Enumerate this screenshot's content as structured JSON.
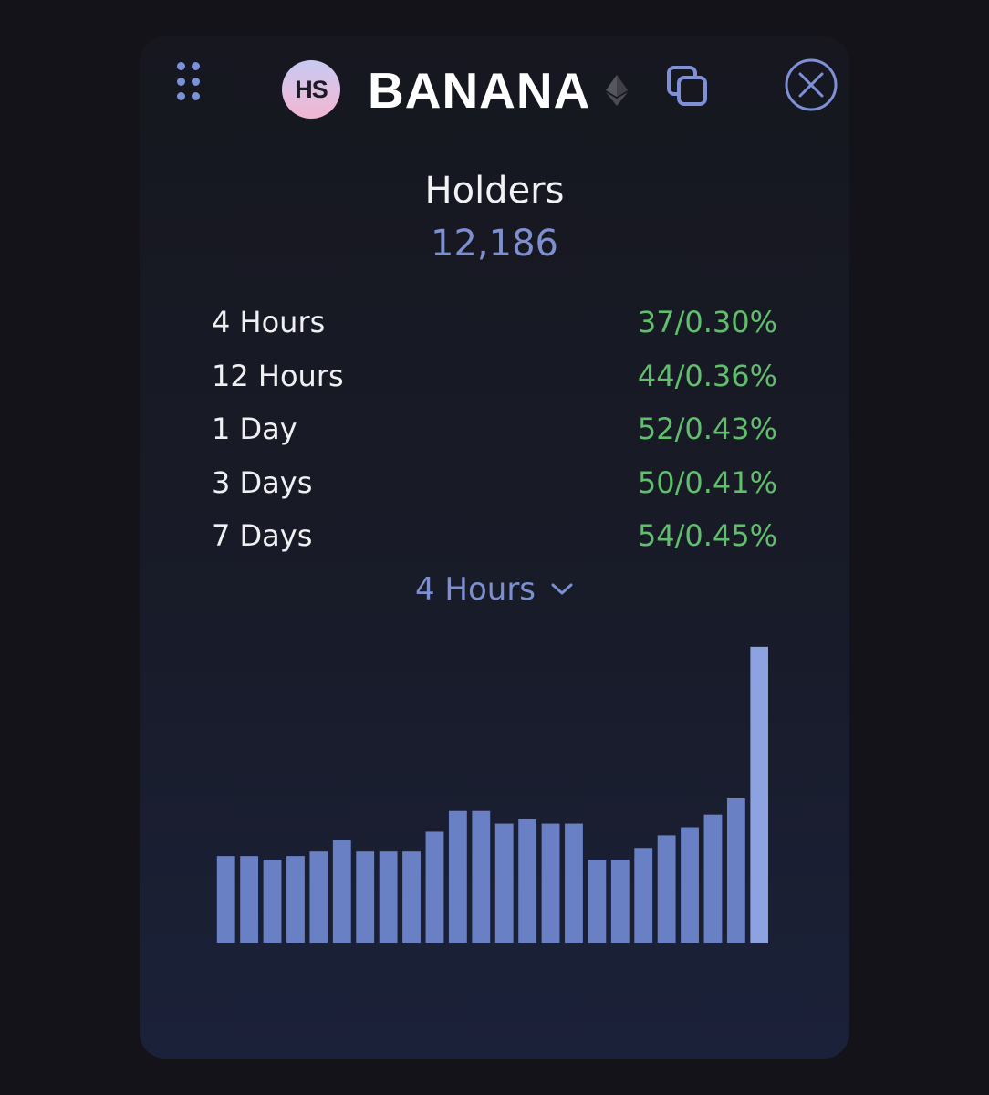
{
  "header": {
    "avatar_initials": "HS",
    "token_name": "BANANA",
    "icons": [
      "drag-handle-icon",
      "ethereum-icon",
      "copy-icon",
      "close-icon"
    ]
  },
  "holders": {
    "title": "Holders",
    "count": "12,186"
  },
  "stats": [
    {
      "label": "4 Hours",
      "value": "37/0.30%"
    },
    {
      "label": "12 Hours",
      "value": "44/0.36%"
    },
    {
      "label": "1 Day",
      "value": "52/0.43%"
    },
    {
      "label": "3 Days",
      "value": "50/0.41%"
    },
    {
      "label": "7 Days",
      "value": "54/0.45%"
    }
  ],
  "period_select": {
    "selected": "4 Hours"
  },
  "colors": {
    "accent": "#7d8fd0",
    "positive": "#5fbf6a",
    "bar": "#6a80c4",
    "bar_highlight": "#8da2e0"
  },
  "chart_data": {
    "type": "bar",
    "values": [
      96,
      96,
      92,
      96,
      101,
      114,
      101,
      101,
      101,
      123,
      146,
      146,
      132,
      137,
      132,
      132,
      92,
      92,
      105,
      119,
      128,
      142,
      160,
      328
    ],
    "ylim": [
      0,
      340
    ],
    "grid": false,
    "highlight_last": true
  }
}
